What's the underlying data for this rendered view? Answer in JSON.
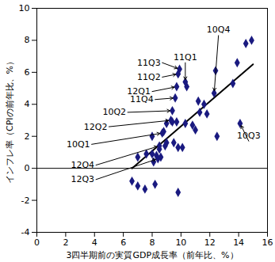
{
  "chart_data": {
    "type": "scatter",
    "x_label": "3四半期前の実質GDP成長率（前年比、%）",
    "y_label": "インフレ率（CPIの前年比、%）",
    "xlim": [
      0,
      16
    ],
    "xticks": [
      0,
      2,
      4,
      6,
      8,
      10,
      12,
      14,
      16
    ],
    "ylim": [
      -4,
      10
    ],
    "yticks": [
      -4,
      -2,
      0,
      2,
      4,
      6,
      8,
      10
    ],
    "color": "#1a1a80",
    "marker": "diamond",
    "grid": false,
    "x": [
      6.6,
      7.0,
      7.5,
      8.2,
      9.8,
      7.0,
      7.6,
      8.0,
      8.1,
      8.3,
      8.5,
      8.6,
      8.9,
      9.0,
      9.5,
      9.8,
      10.1,
      8.0,
      8.7,
      8.8,
      9.0,
      9.4,
      9.7,
      10.3,
      10.8,
      11.0,
      11.3,
      11.8,
      12.5,
      11.6,
      12.3,
      10.4,
      10.3,
      9.8,
      9.9,
      12.4,
      13.6,
      13.9,
      14.5,
      14.9,
      14.1,
      9.4,
      9.6,
      9.7,
      8.4,
      8.5,
      9.3,
      11.2
    ],
    "y": [
      -0.8,
      -1.1,
      -1.3,
      -1.0,
      -1.5,
      0.7,
      0.9,
      0.9,
      0.4,
      0.8,
      1.2,
      0.7,
      1.4,
      1.6,
      1.6,
      1.3,
      1.3,
      2.0,
      2.2,
      2.3,
      2.8,
      2.9,
      2.9,
      2.8,
      2.7,
      2.4,
      3.5,
      3.4,
      2.0,
      4.0,
      4.7,
      5.1,
      5.4,
      5.9,
      6.2,
      6.1,
      5.3,
      6.6,
      7.8,
      8.0,
      2.8,
      3.6,
      4.4,
      5.1,
      0.6,
      1.4,
      3.0,
      4.2
    ],
    "trend_line": {
      "x": [
        6.6,
        15.0
      ],
      "y": [
        0,
        6.5
      ],
      "color": "#000000"
    },
    "reference_lines": [
      {
        "y": 0
      }
    ],
    "annotations": [
      {
        "text": "11Q3",
        "x": 8.7,
        "y": 6.6,
        "target_x": 9.9,
        "target_y": 6.2
      },
      {
        "text": "11Q2",
        "x": 8.7,
        "y": 5.7,
        "target_x": 9.8,
        "target_y": 5.9
      },
      {
        "text": "11Q1",
        "x": 10.3,
        "y": 6.6,
        "target_x": 10.3,
        "target_y": 5.4
      },
      {
        "text": "10Q4",
        "x": 12.6,
        "y": 8.3,
        "target_x": 12.3,
        "target_y": 4.7
      },
      {
        "text": "12Q1",
        "x": 8.0,
        "y": 4.8,
        "target_x": 9.7,
        "target_y": 5.1
      },
      {
        "text": "11Q4",
        "x": 8.2,
        "y": 4.3,
        "target_x": 9.6,
        "target_y": 4.4
      },
      {
        "text": "10Q2",
        "x": 6.3,
        "y": 3.5,
        "target_x": 9.4,
        "target_y": 3.6
      },
      {
        "text": "12Q2",
        "x": 5.0,
        "y": 2.6,
        "target_x": 9.3,
        "target_y": 3.0
      },
      {
        "text": "10Q1",
        "x": 3.8,
        "y": 1.5,
        "target_x": 8.7,
        "target_y": 2.2
      },
      {
        "text": "12Q4",
        "x": 4.1,
        "y": 0.2,
        "target_x": 8.5,
        "target_y": 1.4
      },
      {
        "text": "12Q3",
        "x": 4.1,
        "y": -0.7,
        "target_x": 8.4,
        "target_y": 0.6
      },
      {
        "text": "10Q3",
        "x": 14.7,
        "y": 1.7,
        "target_x": 14.1,
        "target_y": 2.8
      }
    ]
  }
}
